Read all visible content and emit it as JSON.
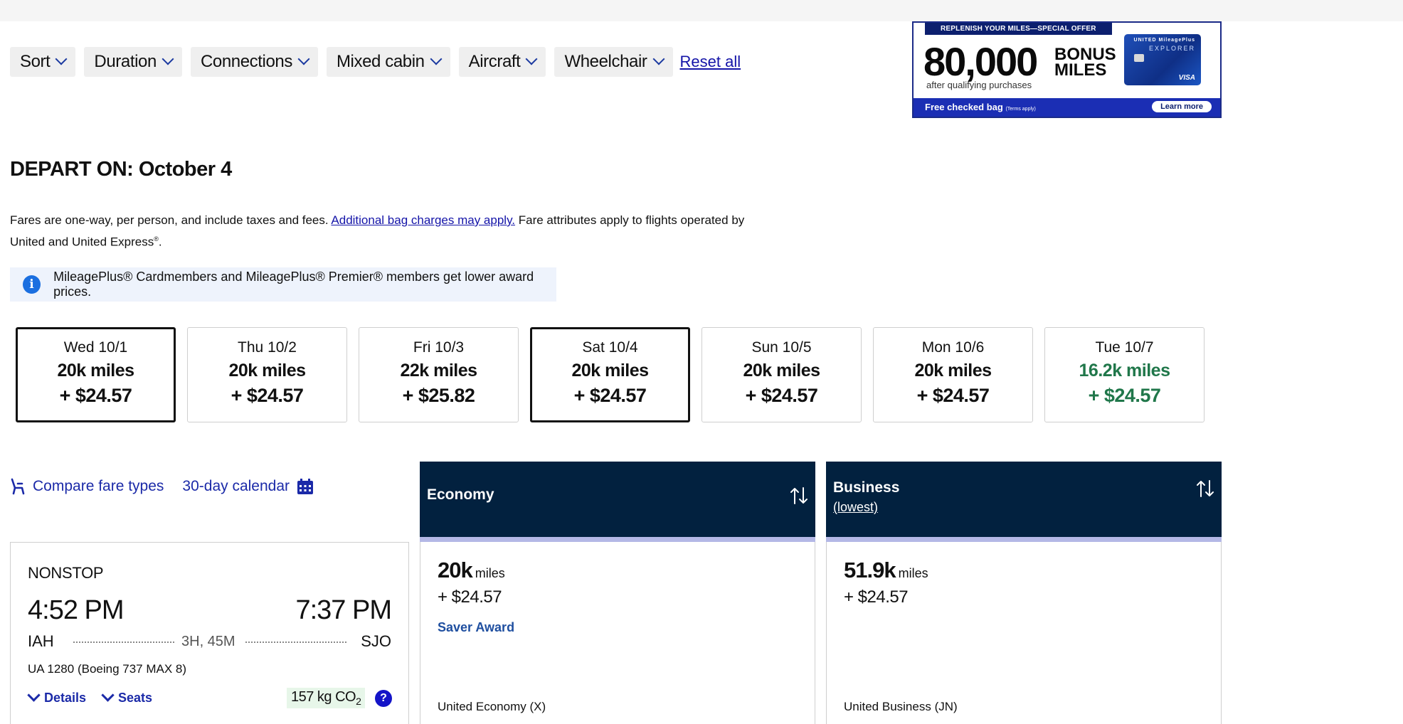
{
  "filters": {
    "buttons": [
      "Sort",
      "Duration",
      "Connections",
      "Mixed cabin",
      "Aircraft",
      "Wheelchair"
    ],
    "reset": "Reset all"
  },
  "ad": {
    "tag": "REPLENISH YOUR MILES—SPECIAL OFFER",
    "big": "80,000",
    "bonus_line1": "BONUS",
    "bonus_line2": "MILES",
    "sub": "after qualifying purchases",
    "card_brand": "UNITED MileagePlus",
    "card_name": "EXPLORER",
    "card_network": "VISA",
    "bottom": "Free checked bag",
    "bottom_small": "(Terms apply)",
    "cta": "Learn more"
  },
  "depart": "DEPART ON: October 4",
  "fare_note": {
    "pre": "Fares are one-way, per person, and include taxes and fees. ",
    "link": "Additional bag charges may apply.",
    "post": " Fare attributes apply to flights operated by United and United Express",
    "reg": "®",
    "end": "."
  },
  "info_banner": "MileagePlus® Cardmembers and MileagePlus® Premier® members get lower award prices.",
  "dates": [
    {
      "day": "Wed 10/1",
      "miles": "20k miles",
      "price": "+ $24.57"
    },
    {
      "day": "Thu 10/2",
      "miles": "20k miles",
      "price": "+ $24.57"
    },
    {
      "day": "Fri 10/3",
      "miles": "22k miles",
      "price": "+ $25.82"
    },
    {
      "day": "Sat 10/4",
      "miles": "20k miles",
      "price": "+ $24.57"
    },
    {
      "day": "Sun 10/5",
      "miles": "20k miles",
      "price": "+ $24.57"
    },
    {
      "day": "Mon 10/6",
      "miles": "20k miles",
      "price": "+ $24.57"
    },
    {
      "day": "Tue 10/7",
      "miles": "16.2k miles",
      "price": "+ $24.57"
    }
  ],
  "colors": {
    "header_navy": "#02213f",
    "link_blue": "#1414a8",
    "lowest_green": "#20774a"
  },
  "tools": {
    "compare": "Compare fare types",
    "calendar": "30-day calendar"
  },
  "columns": {
    "economy": {
      "title": "Economy"
    },
    "business": {
      "title": "Business",
      "sub": "(lowest)"
    }
  },
  "flight": {
    "stops": "NONSTOP",
    "depart_time": "4:52 PM",
    "arrive_time": "7:37 PM",
    "origin": "IAH",
    "destination": "SJO",
    "duration": "3H, 45M",
    "flight_info": "UA 1280 (Boeing 737 MAX 8)",
    "details": "Details",
    "seats": "Seats",
    "co2_value": "157 kg CO",
    "co2_sub": "2",
    "help": "?"
  },
  "prices": {
    "economy": {
      "miles": "20k",
      "unit": "miles",
      "price": "+ $24.57",
      "award": "Saver Award",
      "cabin": "United Economy (X)"
    },
    "business": {
      "miles": "51.9k",
      "unit": "miles",
      "price": "+ $24.57",
      "cabin": "United Business (JN)"
    }
  }
}
